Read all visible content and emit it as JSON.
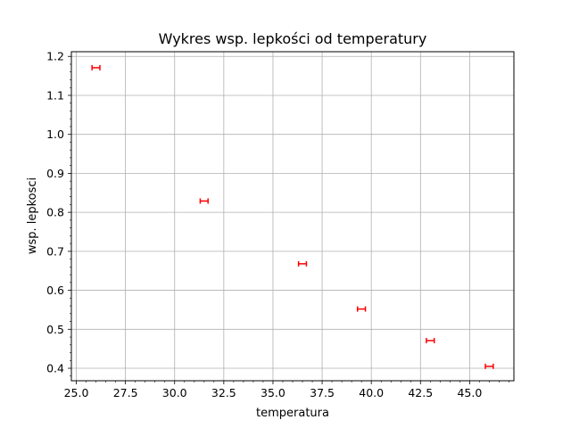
{
  "chart_data": {
    "type": "scatter",
    "title": "Wykres wsp. lepkości od temperatury",
    "xlabel": "temperatura",
    "ylabel": "wsp. lepkosci",
    "xlim": [
      24.75,
      47.25
    ],
    "ylim": [
      0.368,
      1.212
    ],
    "grid": true,
    "x_ticks": [
      25.0,
      27.5,
      30.0,
      32.5,
      35.0,
      37.5,
      40.0,
      42.5,
      45.0
    ],
    "x_tick_labels": [
      "25.0",
      "27.5",
      "30.0",
      "32.5",
      "35.0",
      "37.5",
      "40.0",
      "42.5",
      "45.0"
    ],
    "y_ticks": [
      0.4,
      0.5,
      0.6,
      0.7,
      0.8,
      0.9,
      1.0,
      1.1,
      1.2
    ],
    "y_tick_labels": [
      "0.4",
      "0.5",
      "0.6",
      "0.7",
      "0.8",
      "0.9",
      "1.0",
      "1.1",
      "1.2"
    ],
    "x_minor_step": 0.5,
    "y_minor_step": 0.02,
    "marker_color": "#ff0000",
    "points": [
      {
        "x": 26.0,
        "y": 1.171,
        "xerr": 0.2
      },
      {
        "x": 31.5,
        "y": 0.829,
        "xerr": 0.2
      },
      {
        "x": 36.5,
        "y": 0.668,
        "xerr": 0.2
      },
      {
        "x": 39.5,
        "y": 0.552,
        "xerr": 0.2
      },
      {
        "x": 43.0,
        "y": 0.471,
        "xerr": 0.2
      },
      {
        "x": 46.0,
        "y": 0.405,
        "xerr": 0.2
      }
    ]
  }
}
